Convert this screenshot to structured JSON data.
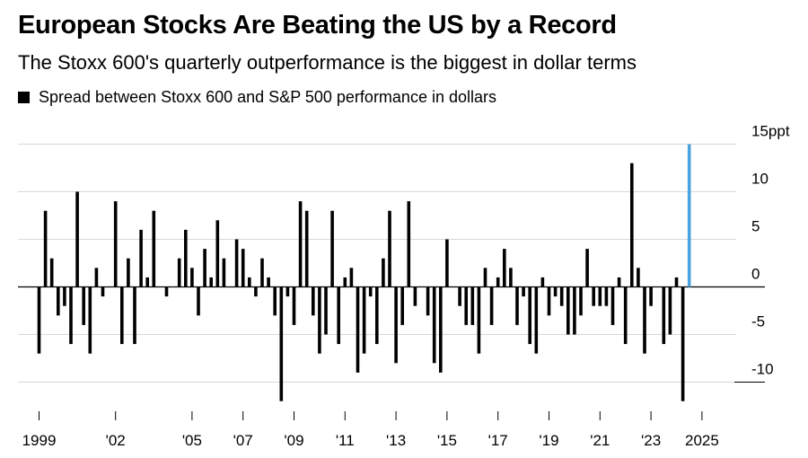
{
  "header": {
    "title": "European Stocks Are Beating the US by a Record",
    "subtitle": "The Stoxx 600's quarterly outperformance is the biggest in dollar terms"
  },
  "legend": {
    "entries": [
      {
        "label": "Spread between Stoxx 600 and S&P 500 performance in dollars",
        "color": "#000000"
      }
    ]
  },
  "chart_data": {
    "type": "bar",
    "title": "European Stocks Are Beating the US by a Record",
    "subtitle": "The Stoxx 600's quarterly outperformance is the biggest in dollar terms",
    "xlabel": "",
    "ylabel": "",
    "ylim": [
      -12,
      15
    ],
    "y_unit": "ppt",
    "y_ticks": [
      {
        "value": 15,
        "label": "15ppt"
      },
      {
        "value": 10,
        "label": "10"
      },
      {
        "value": 5,
        "label": "5"
      },
      {
        "value": 0,
        "label": "0"
      },
      {
        "value": -5,
        "label": "-5"
      },
      {
        "value": -10,
        "label": "-10"
      }
    ],
    "x_ticks": [
      {
        "label": "1999",
        "index": 0
      },
      {
        "label": "'02",
        "index": 12
      },
      {
        "label": "'05",
        "index": 24
      },
      {
        "label": "'07",
        "index": 32
      },
      {
        "label": "'09",
        "index": 40
      },
      {
        "label": "'11",
        "index": 48
      },
      {
        "label": "'13",
        "index": 56
      },
      {
        "label": "'15",
        "index": 64
      },
      {
        "label": "'17",
        "index": 72
      },
      {
        "label": "'19",
        "index": 80
      },
      {
        "label": "'21",
        "index": 88
      },
      {
        "label": "'23",
        "index": 96
      },
      {
        "label": "2025",
        "index": 104
      }
    ],
    "series": [
      {
        "name": "Spread between Stoxx 600 and S&P 500 performance in dollars",
        "color": "#000000",
        "values": [
          -7,
          8,
          3,
          -3,
          -2,
          -6,
          10,
          -4,
          -7,
          2,
          -1,
          0,
          9,
          -6,
          3,
          -6,
          6,
          1,
          8,
          0,
          -1,
          0,
          3,
          6,
          2,
          -3,
          4,
          1,
          7,
          3,
          0,
          5,
          4,
          1,
          -1,
          3,
          1,
          -3,
          -12,
          -1,
          -4,
          9,
          8,
          -3,
          -7,
          -5,
          8,
          -6,
          1,
          2,
          -9,
          -7,
          -1,
          -6,
          3,
          8,
          -8,
          -4,
          9,
          -2,
          0,
          -3,
          -8,
          -9,
          5,
          0,
          -2,
          -4,
          -4,
          -7,
          2,
          -4,
          1,
          4,
          2,
          -4,
          -1,
          -6,
          -7,
          1,
          -3,
          -1,
          -2,
          -5,
          -5,
          -3,
          4,
          -2,
          -2,
          -2,
          -4,
          1,
          -6,
          13,
          2,
          -7,
          -2,
          0,
          -6,
          -5,
          1,
          -12,
          15
        ],
        "highlight": {
          "index": 102,
          "color": "#4aa3df"
        }
      }
    ]
  }
}
